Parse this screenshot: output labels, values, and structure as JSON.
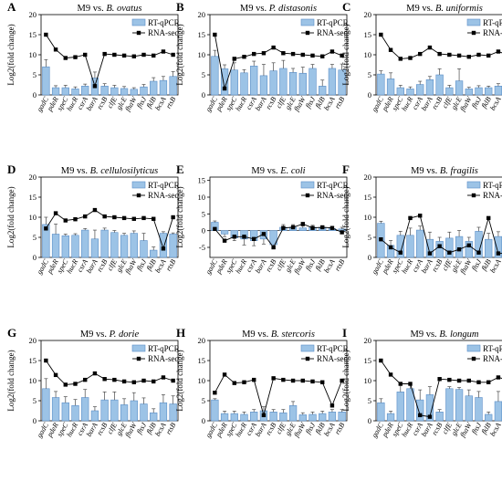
{
  "colors": {
    "bar_fill": "#9cc3e6",
    "bar_stroke": "#5b8ec7",
    "line": "#000000",
    "error": "#4a4a4a",
    "text": "#000000"
  },
  "genes": [
    "gadC",
    "pdeR",
    "speC",
    "hucR",
    "csrA",
    "barA",
    "rcsB",
    "clfE",
    "glcE",
    "fhaW",
    "fhsJ",
    "fklB",
    "bcsA",
    "rtsB"
  ],
  "legend": {
    "bar_label": "RT-qPCR",
    "line_label": "RNA-seq"
  },
  "ylabel": "Log2(fold change)",
  "chart_data": [
    {
      "type": "bar",
      "panel": "A",
      "title_prefix": "M9 vs. ",
      "title_species": "B. ovatus",
      "ylim": [
        0,
        20
      ],
      "yticks": [
        0,
        5,
        10,
        15,
        20
      ],
      "categories": [
        "gadC",
        "pdeR",
        "speC",
        "hucR",
        "csrA",
        "barA",
        "rcsB",
        "clfE",
        "glcE",
        "fhaW",
        "fhsJ",
        "fklB",
        "bcsA",
        "rtsB"
      ],
      "series": [
        {
          "name": "RT-qPCR",
          "kind": "bar",
          "values": [
            7.0,
            1.8,
            1.8,
            1.5,
            2.2,
            4.2,
            2.2,
            1.8,
            1.6,
            1.4,
            2.0,
            3.4,
            3.6,
            4.6
          ],
          "errors": [
            1.8,
            0.5,
            0.6,
            0.5,
            0.5,
            1.5,
            0.6,
            0.6,
            0.5,
            0.4,
            0.6,
            0.9,
            1.0,
            1.2
          ]
        },
        {
          "name": "RNA-seq",
          "kind": "line",
          "values": [
            15.0,
            11.3,
            9.2,
            9.4,
            10.0,
            2.2,
            10.2,
            10.0,
            9.8,
            9.6,
            10.0,
            9.8,
            10.8,
            10.0
          ]
        }
      ]
    },
    {
      "type": "bar",
      "panel": "B",
      "title_prefix": "M9 vs. ",
      "title_species": "P. distasonis",
      "ylim": [
        0,
        20
      ],
      "yticks": [
        0,
        5,
        10,
        15,
        20
      ],
      "categories": [
        "gadC",
        "pdeR",
        "speC",
        "hucR",
        "csrA",
        "barA",
        "rcsB",
        "clfE",
        "glcE",
        "fhaW",
        "fhsJ",
        "fklB",
        "bcsA",
        "rtsB"
      ],
      "series": [
        {
          "name": "RT-qPCR",
          "kind": "bar",
          "values": [
            9.6,
            6.5,
            6.2,
            5.5,
            7.2,
            4.8,
            6.0,
            6.6,
            5.6,
            5.4,
            6.6,
            2.2,
            6.6,
            6.2
          ],
          "errors": [
            1.5,
            1.0,
            1.8,
            0.8,
            1.2,
            2.8,
            2.0,
            2.0,
            1.0,
            1.5,
            1.0,
            1.5,
            1.0,
            1.5
          ]
        },
        {
          "name": "RNA-seq",
          "kind": "line",
          "values": [
            15.0,
            1.6,
            9.0,
            9.5,
            10.2,
            10.4,
            11.8,
            10.4,
            10.2,
            10.0,
            9.8,
            9.6,
            10.8,
            9.8
          ]
        }
      ]
    },
    {
      "type": "bar",
      "panel": "C",
      "title_prefix": "M9 vs. ",
      "title_species": "B. uniformis",
      "ylim": [
        0,
        20
      ],
      "yticks": [
        0,
        5,
        10,
        15,
        20
      ],
      "categories": [
        "gadC",
        "pdeR",
        "speC",
        "hucR",
        "csrA",
        "barA",
        "rcsB",
        "clfE",
        "glcE",
        "fhaW",
        "fhsJ",
        "fklB",
        "bcsA",
        "rtsB"
      ],
      "series": [
        {
          "name": "RT-qPCR",
          "kind": "bar",
          "values": [
            5.2,
            4.0,
            1.8,
            1.5,
            2.6,
            3.8,
            5.0,
            1.8,
            3.5,
            1.5,
            1.8,
            1.8,
            2.2,
            2.2
          ],
          "errors": [
            0.8,
            1.5,
            0.6,
            0.5,
            0.8,
            0.8,
            1.5,
            0.6,
            3.0,
            0.4,
            0.5,
            0.4,
            0.6,
            0.6
          ]
        },
        {
          "name": "RNA-seq",
          "kind": "line",
          "values": [
            15.0,
            11.2,
            9.0,
            9.2,
            10.2,
            11.8,
            10.2,
            10.0,
            9.8,
            9.5,
            10.0,
            9.8,
            10.8,
            10.0
          ]
        }
      ]
    },
    {
      "type": "bar",
      "panel": "D",
      "title_prefix": "M9 vs. ",
      "title_species": "B. cellulosilyticus",
      "ylim": [
        0,
        20
      ],
      "yticks": [
        0,
        5,
        10,
        15,
        20
      ],
      "categories": [
        "gadC",
        "pdeR",
        "speC",
        "hucR",
        "csrA",
        "barA",
        "rcsB",
        "clfE",
        "glcE",
        "fhaW",
        "fhsJ",
        "fklB",
        "bcsA",
        "rtsB"
      ],
      "series": [
        {
          "name": "RT-qPCR",
          "kind": "bar",
          "values": [
            8.2,
            5.8,
            5.4,
            5.5,
            6.8,
            4.6,
            6.8,
            6.2,
            5.5,
            6.0,
            4.2,
            1.8,
            6.0,
            5.8
          ],
          "errors": [
            1.8,
            2.5,
            0.4,
            0.4,
            0.4,
            2.2,
            0.5,
            0.5,
            0.5,
            0.6,
            1.8,
            0.8,
            0.4,
            0.3
          ]
        },
        {
          "name": "RNA-seq",
          "kind": "line",
          "values": [
            7.2,
            11.0,
            9.2,
            9.5,
            10.2,
            11.8,
            10.2,
            10.0,
            9.8,
            9.6,
            9.8,
            9.6,
            2.2,
            10.0
          ]
        }
      ]
    },
    {
      "type": "bar",
      "panel": "E",
      "title_prefix": "M9 vs. ",
      "title_species": "E. coli",
      "ylim": [
        -8,
        16
      ],
      "yticks": [
        -5,
        0,
        5,
        10,
        15
      ],
      "categories": [
        "gadC",
        "pdeR",
        "speC",
        "hucR",
        "csrA",
        "barA",
        "rcsB",
        "clfE",
        "glcE",
        "fhaW",
        "fhsJ",
        "fklB",
        "bcsA",
        "rtsB"
      ],
      "series": [
        {
          "name": "RT-qPCR",
          "kind": "bar",
          "values": [
            2.5,
            -1.0,
            -2.2,
            -2.5,
            -3.0,
            -2.5,
            -4.2,
            1.0,
            1.0,
            0.8,
            1.0,
            0.8,
            0.6,
            0.5
          ],
          "errors": [
            0.4,
            0.8,
            0.8,
            1.8,
            1.5,
            1.5,
            1.2,
            0.8,
            0.8,
            0.6,
            0.6,
            0.6,
            0.5,
            0.5
          ]
        },
        {
          "name": "RNA-seq",
          "kind": "line",
          "values": [
            0.5,
            -3.0,
            -1.8,
            -1.8,
            -2.5,
            -1.0,
            -5.0,
            0.8,
            1.0,
            2.0,
            0.8,
            1.0,
            0.8,
            -0.5
          ]
        }
      ]
    },
    {
      "type": "bar",
      "panel": "F",
      "title_prefix": "M9 vs. ",
      "title_species": "B. fragilis",
      "ylim": [
        0,
        20
      ],
      "yticks": [
        0,
        5,
        10,
        15,
        20
      ],
      "categories": [
        "gadC",
        "pdeR",
        "speC",
        "hucR",
        "csrA",
        "barA",
        "rcsB",
        "clfE",
        "glcE",
        "fhaW",
        "fhsJ",
        "fklB",
        "bcsA",
        "rtsB"
      ],
      "series": [
        {
          "name": "RT-qPCR",
          "kind": "bar",
          "values": [
            8.5,
            3.0,
            5.5,
            5.5,
            6.8,
            4.5,
            4.0,
            4.8,
            5.2,
            4.0,
            6.5,
            4.5,
            5.2,
            4.8
          ],
          "errors": [
            0.5,
            1.2,
            1.0,
            1.8,
            1.0,
            1.8,
            1.0,
            1.5,
            1.5,
            1.0,
            1.0,
            1.5,
            1.2,
            1.2
          ]
        },
        {
          "name": "RNA-seq",
          "kind": "line",
          "values": [
            4.5,
            2.5,
            1.2,
            9.8,
            10.4,
            1.0,
            2.8,
            1.2,
            2.0,
            3.0,
            1.2,
            9.8,
            1.0,
            1.0
          ]
        }
      ]
    },
    {
      "type": "bar",
      "panel": "G",
      "title_prefix": "M9 vs. ",
      "title_species": "P. dorie",
      "ylim": [
        0,
        20
      ],
      "yticks": [
        0,
        5,
        10,
        15,
        20
      ],
      "categories": [
        "gadC",
        "pdeR",
        "speC",
        "hucR",
        "csrA",
        "barA",
        "rcsB",
        "clfE",
        "glcE",
        "fhaW",
        "fhsJ",
        "fklB",
        "bcsA",
        "rtsB"
      ],
      "series": [
        {
          "name": "RT-qPCR",
          "kind": "bar",
          "values": [
            8.0,
            5.8,
            4.5,
            3.8,
            5.8,
            2.5,
            5.2,
            5.2,
            4.0,
            5.0,
            4.2,
            2.0,
            4.5,
            4.2
          ],
          "errors": [
            2.5,
            1.5,
            1.5,
            1.5,
            2.0,
            1.0,
            2.0,
            2.0,
            1.5,
            2.0,
            1.5,
            1.0,
            2.0,
            2.0
          ]
        },
        {
          "name": "RNA-seq",
          "kind": "line",
          "values": [
            15.0,
            11.4,
            9.0,
            9.2,
            10.2,
            11.8,
            10.4,
            10.2,
            9.8,
            9.6,
            10.0,
            9.8,
            10.8,
            10.0
          ]
        }
      ]
    },
    {
      "type": "bar",
      "panel": "H",
      "title_prefix": "M9 vs. ",
      "title_species": "B. stercoris",
      "ylim": [
        0,
        20
      ],
      "yticks": [
        0,
        5,
        10,
        15,
        20
      ],
      "categories": [
        "gadC",
        "pdeR",
        "speC",
        "hucR",
        "csrA",
        "barA",
        "rcsB",
        "clfE",
        "glcE",
        "fhaW",
        "fhsJ",
        "fklB",
        "bcsA",
        "rtsB"
      ],
      "series": [
        {
          "name": "RT-qPCR",
          "kind": "bar",
          "values": [
            5.2,
            1.8,
            1.8,
            1.6,
            2.2,
            2.5,
            2.2,
            2.0,
            3.8,
            1.5,
            1.6,
            1.8,
            2.2,
            2.2
          ],
          "errors": [
            0.3,
            0.6,
            0.6,
            0.6,
            0.6,
            1.0,
            0.6,
            0.8,
            1.0,
            0.5,
            0.6,
            0.6,
            0.6,
            0.6
          ]
        },
        {
          "name": "RNA-seq",
          "kind": "line",
          "values": [
            7.0,
            11.5,
            9.4,
            9.6,
            10.2,
            1.4,
            10.6,
            10.2,
            10.0,
            10.0,
            9.8,
            9.6,
            3.8,
            10.0
          ]
        }
      ]
    },
    {
      "type": "bar",
      "panel": "I",
      "title_prefix": "M9 vs. ",
      "title_species": "B. longum",
      "ylim": [
        0,
        20
      ],
      "yticks": [
        0,
        5,
        10,
        15,
        20
      ],
      "categories": [
        "gadC",
        "pdeR",
        "speC",
        "hucR",
        "csrA",
        "barA",
        "rcsB",
        "clfE",
        "glcE",
        "fhaW",
        "fhsJ",
        "fklB",
        "bcsA",
        "rtsB"
      ],
      "series": [
        {
          "name": "RT-qPCR",
          "kind": "bar",
          "values": [
            4.5,
            1.8,
            7.2,
            8.0,
            5.2,
            6.5,
            2.2,
            8.0,
            7.8,
            6.2,
            5.8,
            1.6,
            4.8,
            7.8
          ],
          "errors": [
            1.0,
            0.6,
            2.0,
            1.0,
            2.5,
            2.0,
            0.6,
            0.5,
            0.5,
            1.5,
            1.5,
            0.6,
            2.5,
            0.5
          ]
        },
        {
          "name": "RNA-seq",
          "kind": "line",
          "values": [
            15.0,
            11.5,
            9.2,
            9.2,
            1.4,
            1.0,
            10.4,
            10.2,
            10.0,
            10.0,
            9.6,
            9.6,
            10.8,
            10.2
          ]
        }
      ]
    }
  ]
}
